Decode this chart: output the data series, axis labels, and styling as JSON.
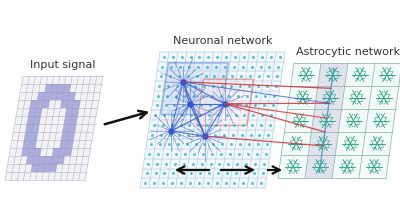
{
  "title_input": "Input signal",
  "title_neuronal": "Neuronal network",
  "title_astrocytic": "Astrocytic network",
  "bg_color": "#ffffff",
  "grid_color_input": "#bbbbcc",
  "cell_color_input": "#8888cc",
  "grid_color_neuronal": "#99bbdd",
  "dot_color_neuronal": "#44bbcc",
  "grid_color_astrocytic": "#88bbaa",
  "astro_color": "#33aa88",
  "highlight_box_color_blue": "#4466cc",
  "highlight_box_color_red": "#cc3333",
  "arrow_color": "#111111",
  "neuron_line_color_blue": "#3355cc",
  "neuron_line_color_red": "#cc3333",
  "highlight_bg_blue": "#c8d8f0",
  "highlight_bg_purple": "#d0cce8",
  "font_size_title": 8,
  "digit_zero": [
    [
      0,
      0,
      0,
      0,
      0,
      0,
      0,
      0,
      0,
      0,
      0,
      0,
      0
    ],
    [
      0,
      0,
      0,
      0,
      1,
      1,
      1,
      1,
      0,
      0,
      0,
      0,
      0
    ],
    [
      0,
      0,
      0,
      1,
      1,
      1,
      1,
      1,
      1,
      0,
      0,
      0,
      0
    ],
    [
      0,
      0,
      1,
      1,
      1,
      0,
      0,
      1,
      1,
      1,
      0,
      0,
      0
    ],
    [
      0,
      0,
      1,
      1,
      0,
      0,
      0,
      0,
      1,
      1,
      0,
      0,
      0
    ],
    [
      0,
      0,
      1,
      1,
      0,
      0,
      0,
      0,
      1,
      1,
      0,
      0,
      0
    ],
    [
      0,
      0,
      1,
      1,
      0,
      0,
      0,
      0,
      1,
      1,
      0,
      0,
      0
    ],
    [
      0,
      0,
      1,
      1,
      0,
      0,
      0,
      0,
      1,
      1,
      0,
      0,
      0
    ],
    [
      0,
      0,
      1,
      1,
      0,
      0,
      0,
      0,
      1,
      1,
      0,
      0,
      0
    ],
    [
      0,
      0,
      1,
      1,
      1,
      0,
      0,
      1,
      1,
      1,
      0,
      0,
      0
    ],
    [
      0,
      0,
      0,
      1,
      1,
      1,
      1,
      1,
      1,
      0,
      0,
      0,
      0
    ],
    [
      0,
      0,
      0,
      0,
      1,
      1,
      1,
      1,
      0,
      0,
      0,
      0,
      0
    ],
    [
      0,
      0,
      0,
      0,
      0,
      0,
      0,
      0,
      0,
      0,
      0,
      0,
      0
    ]
  ]
}
